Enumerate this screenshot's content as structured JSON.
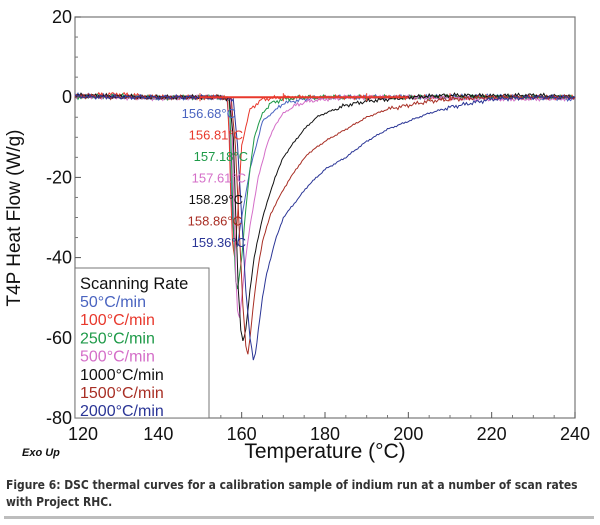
{
  "chart_data": {
    "type": "line",
    "title": "",
    "xlabel": "Temperature (°C)",
    "ylabel": "T4P Heat Flow (W/g)",
    "xlim": [
      120,
      240
    ],
    "ylim": [
      -80,
      20
    ],
    "xticks": [
      120,
      140,
      160,
      180,
      200,
      220,
      240
    ],
    "yticks": [
      20,
      0,
      -20,
      -40,
      -60,
      -80
    ],
    "grid": false,
    "corner_note": "Exo Up",
    "legend": {
      "title": "Scanning Rate",
      "placement": "bottom-left"
    },
    "series": [
      {
        "name": "50°C/min",
        "color": "#4a64c0",
        "onset_label": "156.68°C",
        "x": [
          120,
          130,
          140,
          150,
          155,
          156.5,
          157.0,
          157.4,
          157.8,
          158.2,
          159,
          160,
          162,
          165,
          170,
          175,
          180,
          190,
          200,
          210,
          220,
          230,
          240
        ],
        "y": [
          0.5,
          0.3,
          -0.2,
          0,
          0,
          -0.5,
          -8,
          -20,
          -30,
          -36,
          -37,
          -30,
          -18,
          -6,
          -1.5,
          -0.5,
          0,
          0,
          0,
          0.2,
          0.3,
          0,
          -0.5
        ]
      },
      {
        "name": "100°C/min",
        "color": "#e8382c",
        "onset_label": "156.81°C",
        "x": [
          120,
          130,
          140,
          150,
          155,
          156.6,
          157.0,
          157.4,
          157.8,
          158.3,
          159,
          160,
          162,
          165,
          170,
          180,
          200,
          220,
          240
        ],
        "y": [
          0.3,
          0.8,
          0,
          0,
          0,
          -0.5,
          -10,
          -25,
          -36,
          -40,
          -30,
          -12,
          -3,
          -0.5,
          0,
          0,
          0,
          0,
          0
        ]
      },
      {
        "name": "250°C/min",
        "color": "#1e9a48",
        "onset_label": "157.18°C",
        "x": [
          120,
          130,
          140,
          150,
          155,
          157.0,
          157.4,
          157.8,
          158.2,
          158.6,
          159.0,
          160,
          161,
          162,
          163,
          165,
          167,
          170,
          175,
          180,
          200,
          220,
          240
        ],
        "y": [
          0,
          0.3,
          -0.2,
          0,
          0,
          -0.5,
          -10,
          -25,
          -38,
          -46,
          -48,
          -40,
          -28,
          -18,
          -10,
          -4,
          -1.5,
          -0.5,
          0,
          0,
          0,
          0,
          0
        ]
      },
      {
        "name": "500°C/min",
        "color": "#d46ec8",
        "onset_label": "157.61°C",
        "x": [
          120,
          130,
          140,
          150,
          155,
          157.4,
          157.8,
          158.2,
          158.6,
          159.0,
          159.5,
          160,
          161,
          162,
          164,
          166,
          168,
          170,
          173,
          176,
          180,
          185,
          190,
          200,
          220,
          240
        ],
        "y": [
          0.2,
          0,
          -0.3,
          0,
          0,
          -0.5,
          -12,
          -30,
          -45,
          -53,
          -55,
          -50,
          -40,
          -32,
          -20,
          -12,
          -7,
          -4,
          -2,
          -1,
          -0.5,
          0,
          0,
          0,
          -0.5,
          -0.3
        ]
      },
      {
        "name": "1000°C/min",
        "color": "#111111",
        "onset_label": "158.29°C",
        "x": [
          120,
          130,
          140,
          150,
          155,
          157.0,
          158.0,
          158.6,
          159.2,
          159.8,
          160.3,
          161,
          162,
          163,
          165,
          168,
          170,
          172,
          175,
          178,
          180,
          185,
          190,
          200,
          210,
          220,
          230,
          240
        ],
        "y": [
          0.5,
          0.2,
          0,
          0,
          0,
          -0.5,
          -10,
          -30,
          -48,
          -58,
          -61,
          -58,
          -48,
          -40,
          -30,
          -20,
          -15,
          -12,
          -8,
          -5,
          -4,
          -2,
          -1,
          0,
          0.5,
          0.3,
          0.5,
          0
        ]
      },
      {
        "name": "1500°C/min",
        "color": "#a82e24",
        "onset_label": "158.86°C",
        "x": [
          120,
          130,
          140,
          150,
          155,
          157.5,
          158.5,
          159.5,
          160.3,
          161,
          161.5,
          162,
          163,
          164,
          165,
          167,
          170,
          173,
          176,
          180,
          185,
          190,
          195,
          200,
          205,
          210,
          220,
          230,
          240
        ],
        "y": [
          0.3,
          0,
          0,
          0,
          0,
          -0.5,
          -12,
          -35,
          -52,
          -62,
          -64,
          -60,
          -50,
          -42,
          -36,
          -29,
          -23,
          -18,
          -14,
          -11,
          -8,
          -5,
          -3,
          -2,
          -1,
          -0.5,
          0,
          0,
          0
        ]
      },
      {
        "name": "2000°C/min",
        "color": "#2a3596",
        "onset_label": "159.36°C",
        "x": [
          120,
          130,
          140,
          150,
          155,
          158.0,
          159.0,
          160,
          161,
          162,
          162.8,
          163.3,
          164,
          165,
          166,
          168,
          170,
          173,
          176,
          180,
          185,
          190,
          195,
          200,
          205,
          210,
          215,
          220,
          230,
          240
        ],
        "y": [
          0.2,
          0,
          0,
          0,
          0,
          -0.5,
          -12,
          -30,
          -48,
          -60,
          -65.5,
          -64,
          -58,
          -50,
          -44,
          -36,
          -30,
          -26,
          -22,
          -18,
          -15,
          -11,
          -8,
          -6,
          -4,
          -2.5,
          -1.5,
          -0.5,
          0,
          0
        ]
      }
    ]
  },
  "caption": {
    "text": "Figure 6: DSC thermal curves for a calibration sample of indium run at a number of scan rates with Project RHC."
  }
}
